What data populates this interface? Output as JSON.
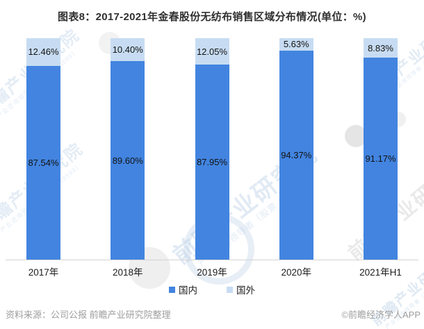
{
  "title": "图表8：2017-2021年金春股份无纺布销售区域分布情况(单位：%)",
  "chart_data": {
    "type": "bar",
    "stacked": true,
    "title": "图表8：2017-2021年金春股份无纺布销售区域分布情况(单位：%)",
    "categories": [
      "2017年",
      "2018年",
      "2019年",
      "2020年",
      "2021年H1"
    ],
    "series": [
      {
        "name": "国内",
        "color": "#4284E0",
        "values": [
          87.54,
          89.6,
          87.95,
          94.37,
          91.17
        ]
      },
      {
        "name": "国外",
        "color": "#C7DCF2",
        "values": [
          12.46,
          10.4,
          12.05,
          5.63,
          8.83
        ]
      }
    ],
    "value_suffix": "%",
    "ylim": [
      0,
      100
    ],
    "grid": false,
    "legend_position": "bottom",
    "data_labels": [
      "87.54%",
      "89.60%",
      "87.95%",
      "94.37%",
      "91.17%",
      "12.46%",
      "10.40%",
      "12.05%",
      "5.63%",
      "8.83%"
    ]
  },
  "footer": {
    "source": "资料来源：公司公报 前瞻产业研究院整理",
    "credit": "©前瞻经济学人APP"
  },
  "watermark": {
    "brand": "前瞻产业研究院",
    "tagline": "产业咨询领导者（股票·839599）"
  },
  "colors": {
    "domestic": "#4284E0",
    "foreign": "#C7DCF2",
    "axis": "#d4d4d4",
    "footer_text": "#9d9d9d",
    "watermark_blue": "#b9cfe6",
    "watermark_gray": "#d0d0d0"
  }
}
